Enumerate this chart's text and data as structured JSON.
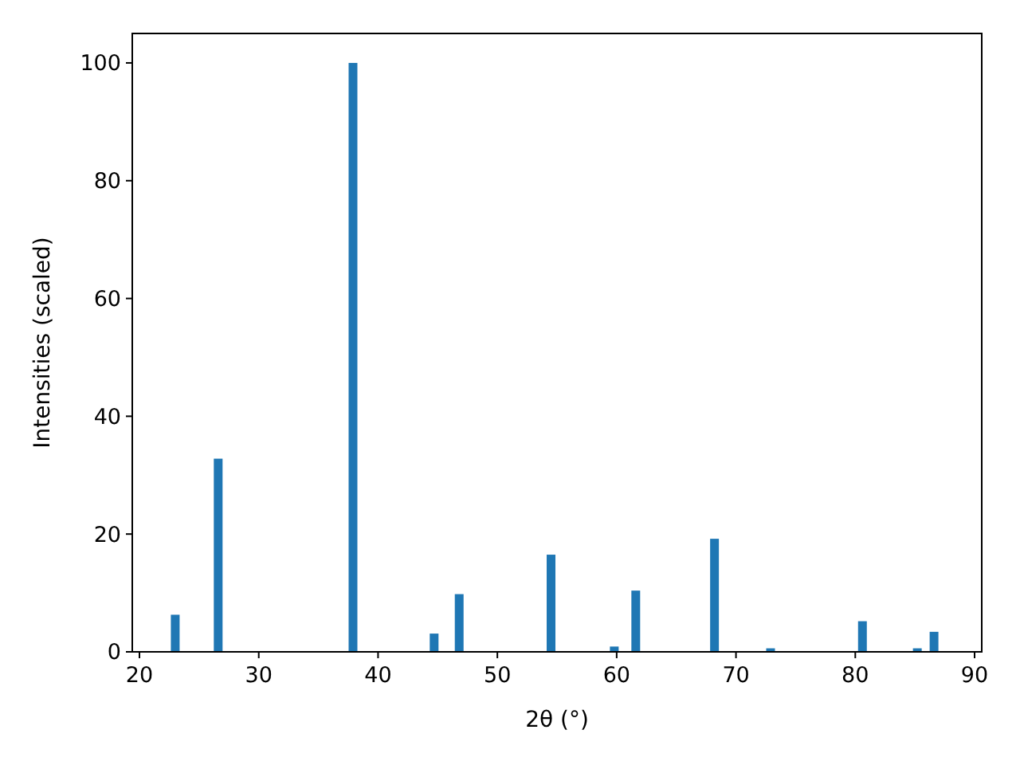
{
  "chart_data": {
    "type": "bar",
    "xlabel": "2θ (°)",
    "ylabel": "Intensities (scaled)",
    "x": [
      23.0,
      26.6,
      37.9,
      44.7,
      46.8,
      54.5,
      59.8,
      61.6,
      68.2,
      72.9,
      80.6,
      85.2,
      86.6
    ],
    "values": [
      6.3,
      32.8,
      100,
      3.1,
      9.8,
      16.5,
      0.9,
      10.4,
      19.2,
      0.6,
      5.2,
      0.6,
      3.4
    ],
    "color": "#1f77b4",
    "xlim": [
      19.4,
      90.6
    ],
    "xticks": [
      20,
      30,
      40,
      50,
      60,
      70,
      80,
      90
    ],
    "ylim": [
      0,
      105
    ],
    "yticks": [
      0,
      20,
      40,
      60,
      80,
      100
    ],
    "grid": false
  }
}
